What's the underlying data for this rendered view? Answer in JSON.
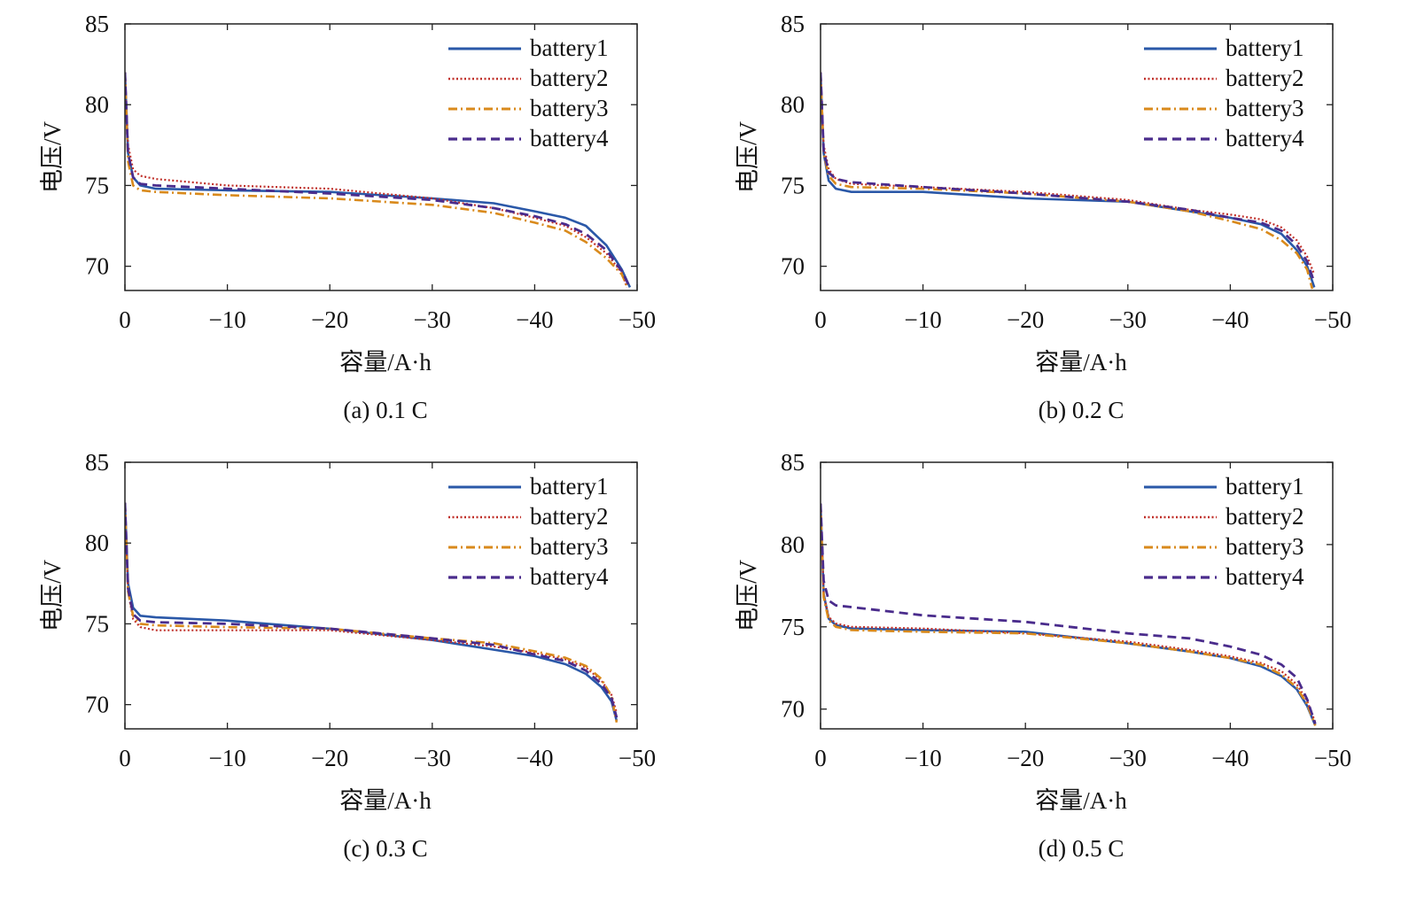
{
  "colors": {
    "battery1": "#2a58a8",
    "battery2": "#c0302a",
    "battery3": "#d98a1c",
    "battery4": "#4a2c8c"
  },
  "chart_data": [
    {
      "type": "line",
      "caption": "(a) 0.1 C",
      "xlabel": "容量/A·h",
      "ylabel": "电压/V",
      "xlim": [
        0,
        -50
      ],
      "ylim": [
        68.5,
        85
      ],
      "xticks": [
        0,
        -10,
        -20,
        -30,
        -40,
        -50
      ],
      "yticks": [
        70,
        75,
        80,
        85
      ],
      "xtick_labels": [
        "0",
        "−10",
        "−20",
        "−30",
        "−40",
        "−50"
      ],
      "ytick_labels": [
        "70",
        "75",
        "80",
        "85"
      ],
      "legend_position": "top-right",
      "series": [
        {
          "name": "battery1",
          "style": "solid",
          "color": "#2a58a8",
          "x": [
            0,
            -0.3,
            -0.8,
            -1.5,
            -3,
            -10,
            -20,
            -30,
            -36,
            -40,
            -43,
            -45,
            -47,
            -48.5,
            -49.3
          ],
          "y": [
            82,
            77,
            75.5,
            75,
            74.8,
            74.7,
            74.6,
            74.2,
            73.9,
            73.4,
            73,
            72.5,
            71.3,
            69.8,
            68.7
          ]
        },
        {
          "name": "battery2",
          "style": "dotted",
          "color": "#c0302a",
          "x": [
            0,
            -0.3,
            -0.8,
            -1.5,
            -3,
            -10,
            -20,
            -30,
            -36,
            -40,
            -43,
            -45,
            -47,
            -48.5,
            -49
          ],
          "y": [
            82,
            77.5,
            76,
            75.6,
            75.4,
            75,
            74.8,
            74.2,
            73.6,
            73,
            72.5,
            71.8,
            70.8,
            69.6,
            68.7
          ]
        },
        {
          "name": "battery3",
          "style": "dashdot",
          "color": "#d98a1c",
          "x": [
            0,
            -0.3,
            -0.8,
            -1.5,
            -3,
            -10,
            -20,
            -30,
            -36,
            -40,
            -43,
            -45,
            -47,
            -48.5,
            -49
          ],
          "y": [
            82,
            76.5,
            75,
            74.7,
            74.6,
            74.4,
            74.2,
            73.8,
            73.3,
            72.7,
            72.2,
            71.5,
            70.5,
            69.5,
            68.8
          ]
        },
        {
          "name": "battery4",
          "style": "dashed",
          "color": "#4a2c8c",
          "x": [
            0,
            -0.3,
            -0.8,
            -1.5,
            -3,
            -10,
            -20,
            -30,
            -36,
            -40,
            -43,
            -45,
            -47,
            -48.5,
            -49.2
          ],
          "y": [
            82,
            77,
            75.5,
            75.1,
            75,
            74.8,
            74.5,
            74.1,
            73.6,
            73.1,
            72.6,
            72,
            71,
            69.7,
            68.8
          ]
        }
      ]
    },
    {
      "type": "line",
      "caption": "(b) 0.2 C",
      "xlabel": "容量/A·h",
      "ylabel": "电压/V",
      "xlim": [
        0,
        -50
      ],
      "ylim": [
        68.5,
        85
      ],
      "xticks": [
        0,
        -10,
        -20,
        -30,
        -40,
        -50
      ],
      "yticks": [
        70,
        75,
        80,
        85
      ],
      "xtick_labels": [
        "0",
        "−10",
        "−20",
        "−30",
        "−40",
        "−50"
      ],
      "ytick_labels": [
        "70",
        "75",
        "80",
        "85"
      ],
      "legend_position": "top-right",
      "series": [
        {
          "name": "battery1",
          "style": "solid",
          "color": "#2a58a8",
          "x": [
            0,
            -0.3,
            -0.8,
            -1.5,
            -3,
            -10,
            -20,
            -30,
            -36,
            -40,
            -43,
            -45,
            -46.5,
            -47.5,
            -48.2
          ],
          "y": [
            82,
            77,
            75.3,
            74.8,
            74.6,
            74.6,
            74.2,
            74,
            73.4,
            73,
            72.6,
            72,
            71,
            70,
            68.7
          ]
        },
        {
          "name": "battery2",
          "style": "dotted",
          "color": "#c0302a",
          "x": [
            0,
            -0.3,
            -0.8,
            -1.5,
            -3,
            -10,
            -20,
            -30,
            -36,
            -40,
            -43,
            -45,
            -46.5,
            -47.5,
            -48.2
          ],
          "y": [
            82,
            77.5,
            76,
            75.4,
            75.1,
            74.9,
            74.6,
            74.1,
            73.5,
            73.2,
            72.9,
            72.4,
            71.6,
            70.6,
            69.5
          ]
        },
        {
          "name": "battery3",
          "style": "dashdot",
          "color": "#d98a1c",
          "x": [
            0,
            -0.3,
            -0.8,
            -1.5,
            -3,
            -10,
            -20,
            -30,
            -36,
            -40,
            -43,
            -45,
            -46.5,
            -47.5,
            -48
          ],
          "y": [
            82,
            77,
            75.6,
            75.1,
            74.9,
            74.8,
            74.5,
            74,
            73.4,
            72.8,
            72.3,
            71.6,
            70.8,
            69.8,
            68.6
          ]
        },
        {
          "name": "battery4",
          "style": "dashed",
          "color": "#4a2c8c",
          "x": [
            0,
            -0.3,
            -0.8,
            -1.5,
            -3,
            -10,
            -20,
            -30,
            -36,
            -40,
            -43,
            -45,
            -46.5,
            -47.5,
            -48.2
          ],
          "y": [
            82,
            77.2,
            75.8,
            75.4,
            75.2,
            74.9,
            74.5,
            74,
            73.5,
            73,
            72.7,
            72.2,
            71.3,
            70.3,
            69
          ]
        }
      ]
    },
    {
      "type": "line",
      "caption": "(c) 0.3 C",
      "xlabel": "容量/A·h",
      "ylabel": "电压/V",
      "xlim": [
        0,
        -50
      ],
      "ylim": [
        68.5,
        85
      ],
      "xticks": [
        0,
        -10,
        -20,
        -30,
        -40,
        -50
      ],
      "yticks": [
        70,
        75,
        80,
        85
      ],
      "xtick_labels": [
        "0",
        "−10",
        "−20",
        "−30",
        "−40",
        "−50"
      ],
      "ytick_labels": [
        "70",
        "75",
        "80",
        "85"
      ],
      "legend_position": "top-right",
      "series": [
        {
          "name": "battery1",
          "style": "solid",
          "color": "#2a58a8",
          "x": [
            0,
            -0.3,
            -0.8,
            -1.5,
            -3,
            -10,
            -20,
            -30,
            -36,
            -40,
            -43,
            -45,
            -46.5,
            -47.5,
            -48
          ],
          "y": [
            82.5,
            77.5,
            76,
            75.5,
            75.4,
            75.2,
            74.7,
            74,
            73.4,
            73,
            72.5,
            71.9,
            71.1,
            70.2,
            69
          ]
        },
        {
          "name": "battery2",
          "style": "dotted",
          "color": "#c0302a",
          "x": [
            0,
            -0.3,
            -0.8,
            -1.5,
            -3,
            -10,
            -20,
            -30,
            -36,
            -40,
            -43,
            -45,
            -46.5,
            -47.5,
            -48
          ],
          "y": [
            82.5,
            77,
            75.3,
            74.8,
            74.6,
            74.6,
            74.6,
            74,
            73.6,
            73.2,
            72.8,
            72.3,
            71.5,
            70.6,
            69.5
          ]
        },
        {
          "name": "battery3",
          "style": "dashdot",
          "color": "#d98a1c",
          "x": [
            0,
            -0.3,
            -0.8,
            -1.5,
            -3,
            -10,
            -20,
            -30,
            -36,
            -40,
            -43,
            -45,
            -46.5,
            -47.5,
            -48
          ],
          "y": [
            82.5,
            77,
            75.5,
            75,
            74.9,
            74.8,
            74.7,
            74.1,
            73.8,
            73.3,
            72.9,
            72.4,
            71.6,
            70.5,
            68.9
          ]
        },
        {
          "name": "battery4",
          "style": "dashed",
          "color": "#4a2c8c",
          "x": [
            0,
            -0.3,
            -0.8,
            -1.5,
            -3,
            -10,
            -20,
            -30,
            -36,
            -40,
            -43,
            -45,
            -46.5,
            -47.5,
            -48
          ],
          "y": [
            82.5,
            77.2,
            75.6,
            75.2,
            75.1,
            75,
            74.7,
            74.1,
            73.7,
            73.1,
            72.7,
            72.1,
            71.3,
            70.4,
            69.2
          ]
        }
      ]
    },
    {
      "type": "line",
      "caption": "(d) 0.5 C",
      "xlabel": "容量/A·h",
      "ylabel": "电压/V",
      "xlim": [
        0,
        -50
      ],
      "ylim": [
        68.8,
        85
      ],
      "xticks": [
        0,
        -10,
        -20,
        -30,
        -40,
        -50
      ],
      "yticks": [
        70,
        75,
        80,
        85
      ],
      "xtick_labels": [
        "0",
        "−10",
        "−20",
        "−30",
        "−40",
        "−50"
      ],
      "ytick_labels": [
        "70",
        "75",
        "80",
        "85"
      ],
      "legend_position": "top-right",
      "series": [
        {
          "name": "battery1",
          "style": "solid",
          "color": "#2a58a8",
          "x": [
            0,
            -0.3,
            -0.8,
            -1.5,
            -3,
            -10,
            -20,
            -30,
            -36,
            -40,
            -43,
            -45,
            -46.5,
            -47.5,
            -48.3
          ],
          "y": [
            82.5,
            77,
            75.5,
            75.1,
            74.9,
            74.8,
            74.7,
            74,
            73.5,
            73.1,
            72.6,
            72,
            71.2,
            70.2,
            69
          ]
        },
        {
          "name": "battery2",
          "style": "dotted",
          "color": "#c0302a",
          "x": [
            0,
            -0.3,
            -0.8,
            -1.5,
            -3,
            -10,
            -20,
            -30,
            -36,
            -40,
            -43,
            -45,
            -46.5,
            -47.5,
            -48.3
          ],
          "y": [
            82.5,
            77,
            75.6,
            75.2,
            75,
            74.9,
            74.6,
            74.1,
            73.6,
            73.2,
            72.8,
            72.3,
            71.5,
            70.5,
            69.2
          ]
        },
        {
          "name": "battery3",
          "style": "dashdot",
          "color": "#d98a1c",
          "x": [
            0,
            -0.3,
            -0.8,
            -1.5,
            -3,
            -10,
            -20,
            -30,
            -36,
            -40,
            -43,
            -45,
            -46.5,
            -47.5,
            -48.3
          ],
          "y": [
            82.5,
            76.8,
            75.4,
            75,
            74.8,
            74.7,
            74.6,
            74,
            73.5,
            73.1,
            72.7,
            72.1,
            71.3,
            70.3,
            69
          ]
        },
        {
          "name": "battery4",
          "style": "dashed",
          "color": "#4a2c8c",
          "x": [
            0,
            -0.3,
            -0.8,
            -1.5,
            -3,
            -10,
            -20,
            -30,
            -36,
            -40,
            -43,
            -45,
            -46.5,
            -47.5,
            -48.3
          ],
          "y": [
            82.5,
            77.8,
            76.6,
            76.3,
            76.2,
            75.7,
            75.3,
            74.6,
            74.3,
            73.8,
            73.3,
            72.7,
            71.9,
            70.6,
            69.1
          ]
        }
      ]
    }
  ]
}
